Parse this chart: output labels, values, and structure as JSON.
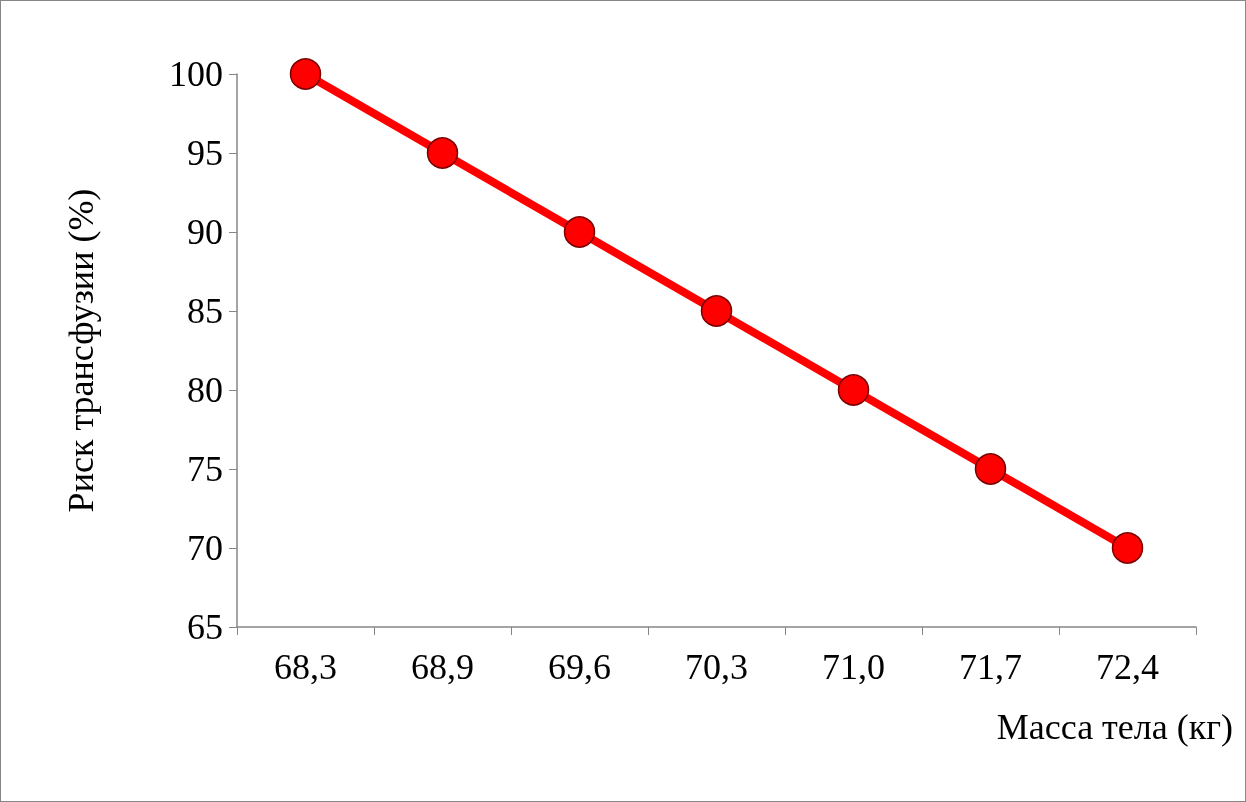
{
  "chart_data": {
    "type": "line",
    "xlabel": "Масса тела (кг)",
    "ylabel": "Риск трансфузии (%)",
    "categories": [
      "68,3",
      "68,9",
      "69,6",
      "70,3",
      "71,0",
      "71,7",
      "72,4"
    ],
    "series": [
      {
        "color": "#ff0000",
        "values": [
          100,
          95,
          90,
          85,
          80,
          75,
          70
        ]
      }
    ],
    "ylim": [
      65,
      100
    ],
    "yticks": [
      65,
      70,
      75,
      80,
      85,
      90,
      95,
      100
    ],
    "grid": false,
    "marker": "circle",
    "line_style": "solid"
  }
}
